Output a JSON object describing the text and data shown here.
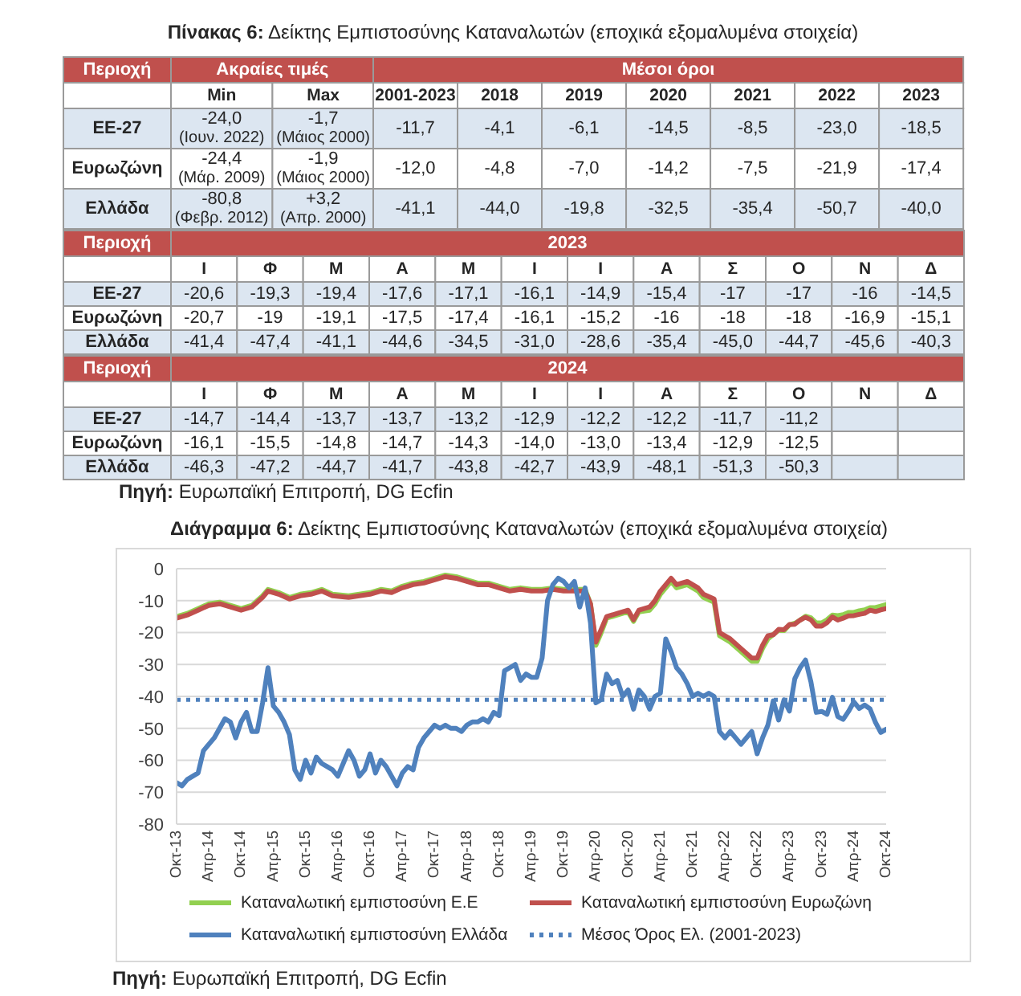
{
  "chart_data": [
    {
      "type": "other",
      "title": "Πίνακας 6: Δείκτης Εμπιστοσύνης Καταναλωτών (εποχικά εξομαλυμένα στοιχεία)"
    },
    {
      "type": "heatmap",
      "xlabel": "Ακραίες τιμές",
      "ylabel": "Περιοχή",
      "categories": [
        "Min",
        "Max"
      ],
      "y_categories": [
        "ΕΕ-27",
        "Ευρωζώνη",
        "Ελλάδα"
      ],
      "cells": [
        [
          -24.0,
          -1.7
        ],
        [
          -24.4,
          -1.9
        ],
        [
          -80.8,
          3.2
        ]
      ],
      "cell_labels": [
        [
          "-24,0",
          "-1,7"
        ],
        [
          "-24,4",
          "-1,9"
        ],
        [
          "-80,8",
          "+3,2"
        ]
      ],
      "annotations": [
        "(Ιουν. 2022)",
        "(Μάιος 2000)",
        "(Μάρ. 2009)",
        "(Μάιος 2000)",
        "(Φεβρ. 2012)",
        "(Απρ. 2000)"
      ]
    },
    {
      "type": "heatmap",
      "xlabel": "Μέσοι όροι",
      "categories": [
        "2001-2023",
        "2018",
        "2019",
        "2020",
        "2021",
        "2022",
        "2023"
      ],
      "y_categories": [
        null,
        null,
        null
      ],
      "cells": [
        [
          -11.7,
          -4.1,
          -6.1,
          -14.5,
          -8.5,
          -23.0,
          -18.5
        ],
        [
          -12.0,
          -4.8,
          -7.0,
          -14.2,
          -7.5,
          -21.9,
          -17.4
        ],
        [
          -41.1,
          -44.0,
          -19.8,
          -32.5,
          -35.4,
          -50.7,
          -40.0
        ]
      ],
      "cell_labels": [
        [
          "-11,7",
          "-4,1",
          "-6,1",
          "-14,5",
          "-8,5",
          "-23,0",
          "-18,5"
        ],
        [
          "-12,0",
          "-4,8",
          "-7,0",
          "-14,2",
          "-7,5",
          "-21,9",
          "-17,4"
        ],
        [
          "-41,1",
          "-44,0",
          "-19,8",
          "-32,5",
          "-35,4",
          "-50,7",
          "-40,0"
        ]
      ]
    },
    {
      "type": "heatmap",
      "xlabel": "2023",
      "ylabel": "Περιοχή",
      "categories": [
        "Ι",
        "Φ",
        "Μ",
        "Α",
        "Μ",
        "Ι",
        "Ι",
        "Α",
        "Σ",
        "Ο",
        "Ν",
        "Δ"
      ],
      "y_categories": [
        "ΕΕ-27",
        "Ευρωζώνη",
        "Ελλάδα"
      ],
      "cells": [
        [
          -20.6,
          -19.3,
          -19.4,
          -17.6,
          -17.1,
          -16.1,
          -14.9,
          -15.4,
          -17,
          -17,
          -16,
          -14.5
        ],
        [
          -20.7,
          -19,
          -19.1,
          -17.5,
          -17.4,
          -16.1,
          -15.2,
          -16,
          -18,
          -18,
          -16.9,
          -15.1
        ],
        [
          -41.4,
          -47.4,
          -41.1,
          -44.6,
          -34.5,
          -31.0,
          -28.6,
          -35.4,
          -45.0,
          -44.7,
          -45.6,
          -40.3
        ]
      ],
      "cell_labels": [
        [
          "-20,6",
          "-19,3",
          "-19,4",
          "-17,6",
          "-17,1",
          "-16,1",
          "-14,9",
          "-15,4",
          "-17",
          "-17",
          "-16",
          "-14,5"
        ],
        [
          "-20,7",
          "-19",
          "-19,1",
          "-17,5",
          "-17,4",
          "-16,1",
          "-15,2",
          "-16",
          "-18",
          "-18",
          "-16,9",
          "-15,1"
        ],
        [
          "-41,4",
          "-47,4",
          "-41,1",
          "-44,6",
          "-34,5",
          "-31,0",
          "-28,6",
          "-35,4",
          "-45,0",
          "-44,7",
          "-45,6",
          "-40,3"
        ]
      ]
    },
    {
      "type": "heatmap",
      "xlabel": "2024",
      "ylabel": "Περιοχή",
      "annotations": [
        "Πηγή: Ευρωπαϊκή Επιτροπή, DG Ecfin"
      ],
      "categories": [
        "Ι",
        "Φ",
        "Μ",
        "Α",
        "Μ",
        "Ι",
        "Ι",
        "Α",
        "Σ",
        "Ο",
        "Ν",
        "Δ"
      ],
      "y_categories": [
        "ΕΕ-27",
        "Ευρωζώνη",
        "Ελλάδα"
      ],
      "cells": [
        [
          -14.7,
          -14.4,
          -13.7,
          -13.7,
          -13.2,
          -12.9,
          -12.2,
          -12.2,
          -11.7,
          -11.2,
          null,
          null
        ],
        [
          -16.1,
          -15.5,
          -14.8,
          -14.7,
          -14.3,
          -14.0,
          -13.0,
          -13.4,
          -12.9,
          -12.5,
          null,
          null
        ],
        [
          -46.3,
          -47.2,
          -44.7,
          -41.7,
          -43.8,
          -42.7,
          -43.9,
          -48.1,
          -51.3,
          -50.3,
          null,
          null
        ]
      ],
      "cell_labels": [
        [
          "-14,7",
          "-14,4",
          "-13,7",
          "-13,7",
          "-13,2",
          "-12,9",
          "-12,2",
          "-12,2",
          "-11,7",
          "-11,2",
          null,
          null
        ],
        [
          "-16,1",
          "-15,5",
          "-14,8",
          "-14,7",
          "-14,3",
          "-14,0",
          "-13,0",
          "-13,4",
          "-12,9",
          "-12,5",
          null,
          null
        ],
        [
          "-46,3",
          "-47,2",
          "-44,7",
          "-41,7",
          "-43,8",
          "-42,7",
          "-43,9",
          "-48,1",
          "-51,3",
          "-50,3",
          null,
          null
        ]
      ]
    },
    {
      "type": "line",
      "title": "Διάγραμμα 6: Δείκτης Εμπιστοσύνης Καταναλωτών (εποχικά εξομαλυμένα στοιχεία)",
      "annotations": [
        "Πηγή: Ευρωπαϊκή Επιτροπή, DG Ecfin"
      ],
      "x": [
        "2013-10",
        "2013-11",
        "2013-12",
        "2014-01",
        "2014-02",
        "2014-03",
        "2014-04",
        "2014-05",
        "2014-06",
        "2014-07",
        "2014-08",
        "2014-09",
        "2014-10",
        "2014-11",
        "2014-12",
        "2015-01",
        "2015-02",
        "2015-03",
        "2015-04",
        "2015-05",
        "2015-06",
        "2015-07",
        "2015-08",
        "2015-09",
        "2015-10",
        "2015-11",
        "2015-12",
        "2016-01",
        "2016-02",
        "2016-03",
        "2016-04",
        "2016-05",
        "2016-06",
        "2016-07",
        "2016-08",
        "2016-09",
        "2016-10",
        "2016-11",
        "2016-12",
        "2017-01",
        "2017-02",
        "2017-03",
        "2017-04",
        "2017-05",
        "2017-06",
        "2017-07",
        "2017-08",
        "2017-09",
        "2017-10",
        "2017-11",
        "2017-12",
        "2018-01",
        "2018-02",
        "2018-03",
        "2018-04",
        "2018-05",
        "2018-06",
        "2018-07",
        "2018-08",
        "2018-09",
        "2018-10",
        "2018-11",
        "2018-12",
        "2019-01",
        "2019-02",
        "2019-03",
        "2019-04",
        "2019-05",
        "2019-06",
        "2019-07",
        "2019-08",
        "2019-09",
        "2019-10",
        "2019-11",
        "2019-12",
        "2020-01",
        "2020-02",
        "2020-03",
        "2020-04",
        "2020-05",
        "2020-06",
        "2020-07",
        "2020-08",
        "2020-09",
        "2020-10",
        "2020-11",
        "2020-12",
        "2021-01",
        "2021-02",
        "2021-03",
        "2021-04",
        "2021-05",
        "2021-06",
        "2021-07",
        "2021-08",
        "2021-09",
        "2021-10",
        "2021-11",
        "2021-12",
        "2022-01",
        "2022-02",
        "2022-03",
        "2022-04",
        "2022-05",
        "2022-06",
        "2022-07",
        "2022-08",
        "2022-09",
        "2022-10",
        "2022-11",
        "2022-12",
        "2023-01",
        "2023-02",
        "2023-03",
        "2023-04",
        "2023-05",
        "2023-06",
        "2023-07",
        "2023-08",
        "2023-09",
        "2023-10",
        "2023-11",
        "2023-12",
        "2024-01",
        "2024-02",
        "2024-03",
        "2024-04",
        "2024-05",
        "2024-06",
        "2024-07",
        "2024-08",
        "2024-09",
        "2024-10"
      ],
      "series": [
        {
          "name": "Καταναλωτική εμπιστοσύνη Ε.Ε",
          "color": "#92d050",
          "x": [
            "2013-10",
            "2013-12",
            "2014-02",
            "2014-04",
            "2014-06",
            "2014-08",
            "2014-10",
            "2014-12",
            "2015-02",
            "2015-03",
            "2015-05",
            "2015-07",
            "2015-09",
            "2015-11",
            "2016-01",
            "2016-03",
            "2016-06",
            "2016-08",
            "2016-10",
            "2016-12",
            "2017-02",
            "2017-04",
            "2017-06",
            "2017-08",
            "2017-10",
            "2017-12",
            "2018-02",
            "2018-04",
            "2018-06",
            "2018-08",
            "2018-10",
            "2018-12",
            "2019-02",
            "2019-04",
            "2019-06",
            "2019-08",
            "2019-10",
            "2019-12",
            "2020-02",
            "2020-03",
            "2020-04",
            "2020-05",
            "2020-06",
            "2020-08",
            "2020-10",
            "2020-11",
            "2020-12",
            "2021-02",
            "2021-03",
            "2021-04",
            "2021-06",
            "2021-07",
            "2021-09",
            "2021-11",
            "2021-12",
            "2022-02",
            "2022-03",
            "2022-05",
            "2022-07",
            "2022-09",
            "2022-10",
            "2022-11",
            "2022-12",
            "2023-01",
            "2023-02",
            "2023-03",
            "2023-04",
            "2023-05",
            "2023-06",
            "2023-07",
            "2023-08",
            "2023-09",
            "2023-10",
            "2023-11",
            "2023-12",
            "2024-01",
            "2024-02",
            "2024-03",
            "2024-04",
            "2024-05",
            "2024-06",
            "2024-07",
            "2024-08",
            "2024-09",
            "2024-10"
          ],
          "values": [
            -15,
            -14,
            -12.5,
            -11,
            -10.5,
            -11.5,
            -12.5,
            -11.5,
            -8.5,
            -6.5,
            -7.5,
            -9,
            -8,
            -7.5,
            -6.5,
            -8,
            -8.5,
            -8,
            -7.5,
            -6.5,
            -7,
            -5.5,
            -4.5,
            -4,
            -3,
            -2,
            -2.5,
            -3.5,
            -4.5,
            -4.5,
            -5.5,
            -6.5,
            -6,
            -6.5,
            -6.5,
            -6,
            -6.5,
            -6.5,
            -6.5,
            -11,
            -24,
            -20,
            -15.5,
            -14.5,
            -13.5,
            -16.5,
            -13.5,
            -13,
            -11,
            -8,
            -4,
            -6,
            -5,
            -7,
            -9,
            -10.5,
            -21,
            -23,
            -26,
            -29,
            -29,
            -25,
            -22,
            -20.6,
            -19.3,
            -19.4,
            -17.6,
            -17.1,
            -16.1,
            -14.9,
            -15.4,
            -17,
            -17,
            -16,
            -14.5,
            -14.7,
            -14.4,
            -13.7,
            -13.7,
            -13.2,
            -12.9,
            -12.2,
            -12.2,
            -11.7,
            -11.2
          ]
        },
        {
          "name": "Καταναλωτική εμπιστοσύνη Ευρωζώνη",
          "color": "#c0504d",
          "x": [
            "2013-10",
            "2013-12",
            "2014-02",
            "2014-04",
            "2014-06",
            "2014-08",
            "2014-10",
            "2014-12",
            "2015-02",
            "2015-03",
            "2015-05",
            "2015-07",
            "2015-09",
            "2015-11",
            "2016-01",
            "2016-03",
            "2016-06",
            "2016-08",
            "2016-10",
            "2016-12",
            "2017-02",
            "2017-04",
            "2017-06",
            "2017-08",
            "2017-10",
            "2017-12",
            "2018-02",
            "2018-04",
            "2018-06",
            "2018-08",
            "2018-10",
            "2018-12",
            "2019-02",
            "2019-04",
            "2019-06",
            "2019-08",
            "2019-10",
            "2019-12",
            "2020-02",
            "2020-03",
            "2020-04",
            "2020-05",
            "2020-06",
            "2020-08",
            "2020-10",
            "2020-11",
            "2020-12",
            "2021-02",
            "2021-03",
            "2021-04",
            "2021-06",
            "2021-07",
            "2021-09",
            "2021-11",
            "2021-12",
            "2022-02",
            "2022-03",
            "2022-05",
            "2022-07",
            "2022-09",
            "2022-10",
            "2022-11",
            "2022-12",
            "2023-01",
            "2023-02",
            "2023-03",
            "2023-04",
            "2023-05",
            "2023-06",
            "2023-07",
            "2023-08",
            "2023-09",
            "2023-10",
            "2023-11",
            "2023-12",
            "2024-01",
            "2024-02",
            "2024-03",
            "2024-04",
            "2024-05",
            "2024-06",
            "2024-07",
            "2024-08",
            "2024-09",
            "2024-10"
          ],
          "values": [
            -15.5,
            -14.5,
            -13,
            -11.5,
            -11,
            -12,
            -13,
            -12,
            -9,
            -7,
            -8,
            -9.5,
            -8.5,
            -8,
            -7,
            -8.5,
            -9,
            -8.5,
            -8,
            -7,
            -7.5,
            -6,
            -5,
            -4.5,
            -3.5,
            -2.5,
            -3,
            -4,
            -5,
            -5,
            -6,
            -7,
            -6.5,
            -7,
            -7,
            -6.5,
            -7,
            -7,
            -7,
            -11,
            -23,
            -19,
            -15,
            -14,
            -13,
            -16,
            -13,
            -12,
            -10,
            -7,
            -3,
            -5,
            -4,
            -6,
            -8,
            -9.5,
            -20,
            -22,
            -25,
            -28,
            -28,
            -24,
            -21,
            -20.7,
            -19,
            -19.1,
            -17.5,
            -17.4,
            -16.1,
            -15.2,
            -16,
            -18,
            -18,
            -16.9,
            -15.1,
            -16.1,
            -15.5,
            -14.8,
            -14.7,
            -14.3,
            -14.0,
            -13.0,
            -13.4,
            -12.9,
            -12.5
          ]
        },
        {
          "name": "Καταναλωτική εμπιστοσύνη Ελλάδα",
          "color": "#4f81bd",
          "values": [
            -67,
            -68,
            -66,
            -65,
            -64,
            -57,
            -55,
            -53,
            -50,
            -47,
            -48,
            -53,
            -48,
            -45,
            -51,
            -51,
            -42,
            -31,
            -43,
            -45,
            -48,
            -52,
            -63,
            -66,
            -60,
            -64,
            -59,
            -61,
            -62,
            -63,
            -65,
            -61,
            -57,
            -60,
            -65,
            -63,
            -58,
            -64,
            -60,
            -62,
            -65,
            -68,
            -64,
            -62,
            -63,
            -56,
            -53,
            -51,
            -49,
            -50,
            -49,
            -50,
            -50,
            -51,
            -49,
            -48,
            -48,
            -47,
            -48,
            -45,
            -46,
            -32,
            -31,
            -30,
            -35,
            -33,
            -34,
            -34,
            -28,
            -10,
            -5,
            -3,
            -4,
            -6,
            -4,
            -12,
            -6,
            -17,
            -42,
            -41,
            -33,
            -36,
            -35,
            -40,
            -38,
            -44,
            -38,
            -40,
            -44,
            -40,
            -39,
            -22,
            -26,
            -31,
            -33,
            -36,
            -40,
            -39,
            -40,
            -39,
            -40,
            -51,
            -53,
            -51,
            -53,
            -55,
            -53,
            -51,
            -58,
            -53,
            -49,
            -41.4,
            -47.4,
            -41.1,
            -44.6,
            -34.5,
            -31.0,
            -28.6,
            -35.4,
            -45.0,
            -44.7,
            -45.6,
            -40.3,
            -46.3,
            -47.2,
            -44.7,
            -41.7,
            -43.8,
            -42.7,
            -43.9,
            -48.1,
            -51.3,
            -50.3
          ]
        }
      ],
      "xlim": [
        "2013-10",
        "2024-10"
      ],
      "xticks": [
        {
          "value": "2013-10",
          "label": "Οκτ-13"
        },
        {
          "value": "2014-04",
          "label": "Απρ-14"
        },
        {
          "value": "2014-10",
          "label": "Οκτ-14"
        },
        {
          "value": "2015-04",
          "label": "Απρ-15"
        },
        {
          "value": "2015-10",
          "label": "Οκτ-15"
        },
        {
          "value": "2016-04",
          "label": "Απρ-16"
        },
        {
          "value": "2016-10",
          "label": "Οκτ-16"
        },
        {
          "value": "2017-04",
          "label": "Απρ-17"
        },
        {
          "value": "2017-10",
          "label": "Οκτ-17"
        },
        {
          "value": "2018-04",
          "label": "Απρ-18"
        },
        {
          "value": "2018-10",
          "label": "Οκτ-18"
        },
        {
          "value": "2019-04",
          "label": "Απρ-19"
        },
        {
          "value": "2019-10",
          "label": "Οκτ-19"
        },
        {
          "value": "2020-04",
          "label": "Απρ-20"
        },
        {
          "value": "2020-10",
          "label": "Οκτ-20"
        },
        {
          "value": "2021-04",
          "label": "Απρ-21"
        },
        {
          "value": "2021-10",
          "label": "Οκτ-21"
        },
        {
          "value": "2022-04",
          "label": "Απρ-22"
        },
        {
          "value": "2022-10",
          "label": "Οκτ-22"
        },
        {
          "value": "2023-04",
          "label": "Απρ-23"
        },
        {
          "value": "2023-10",
          "label": "Οκτ-23"
        },
        {
          "value": "2024-04",
          "label": "Απρ-24"
        },
        {
          "value": "2024-10",
          "label": "Οκτ-24"
        }
      ],
      "ylim": [
        -80,
        0
      ],
      "yticks": [
        -80,
        -70,
        -60,
        -50,
        -40,
        -30,
        -20,
        -10,
        0
      ],
      "ref_lines": [
        {
          "axis": "y",
          "value": -41.1,
          "label": "Μέσος Όρος Ελ. (2001-2023)",
          "color": "#4f81bd",
          "line_style": "dotted"
        }
      ],
      "grid": "y",
      "legend": "bottom"
    }
  ]
}
